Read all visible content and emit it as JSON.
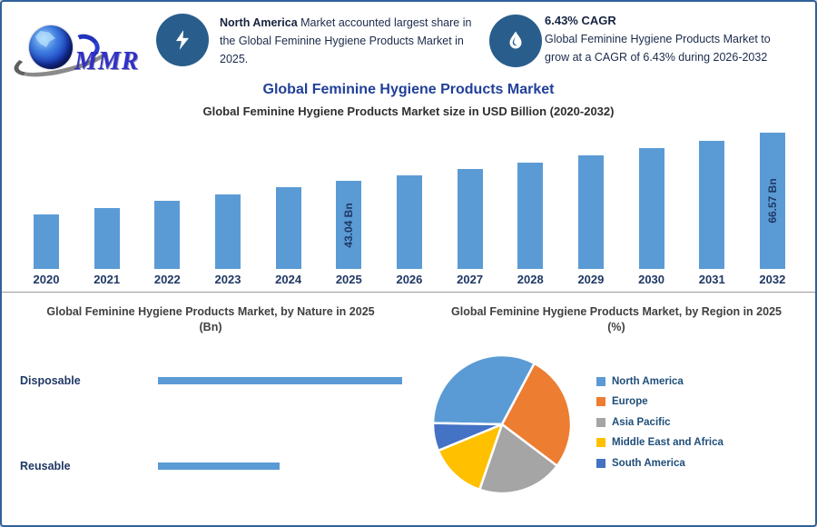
{
  "logo": {
    "text": "MMR"
  },
  "header": {
    "banner1": {
      "icon": "lightning-icon",
      "text_bold": "North America",
      "text_rest": " Market accounted largest share in the Global Feminine Hygiene Products Market in 2025."
    },
    "banner2": {
      "icon": "droplet-icon",
      "heading": "6.43% CAGR",
      "line1": "Global Feminine Hygiene Products Market to",
      "line2": "grow at a CAGR of 6.43% during 2026-2032"
    }
  },
  "title": "Global Feminine Hygiene Products Market",
  "subtitle": "Global Feminine Hygiene Products Market size in USD Billion (2020-2032)",
  "sections": {
    "nature": {
      "title_line1": "Global Feminine Hygiene Products Market, by Nature in 2025",
      "title_line2": "(Bn)"
    },
    "region": {
      "title_line1": "Global Feminine Hygiene Products Market, by Region in 2025",
      "title_line2": "(%)"
    }
  },
  "colors": {
    "bar": "#5b9bd5",
    "accent_circle": "#295e8c",
    "title_blue": "#21409a",
    "axis_text": "#1f3864",
    "legend_text": "#1f4e79"
  },
  "chart_data": [
    {
      "type": "bar",
      "title": "Global Feminine Hygiene Products Market size in USD Billion (2020-2032)",
      "categories": [
        "2020",
        "2021",
        "2022",
        "2023",
        "2024",
        "2025",
        "2026",
        "2027",
        "2028",
        "2029",
        "2030",
        "2031",
        "2032"
      ],
      "values": [
        26.5,
        29.6,
        33.2,
        36.4,
        39.9,
        43.04,
        45.8,
        48.8,
        52.0,
        55.3,
        58.9,
        62.6,
        66.57
      ],
      "data_labels": {
        "2025": "43.04 Bn",
        "2032": "66.57 Bn"
      },
      "unit": "USD Billion",
      "ylim": [
        0,
        66.57
      ],
      "grid": false,
      "bar_color": "#5b9bd5"
    },
    {
      "type": "bar",
      "orientation": "horizontal",
      "title": "Global Feminine Hygiene Products Market, by Nature in 2025 (Bn)",
      "categories": [
        "Disposable",
        "Reusable"
      ],
      "values": [
        28.7,
        14.3
      ],
      "unit": "Bn",
      "bar_color": "#5b9bd5"
    },
    {
      "type": "pie",
      "title": "Global Feminine Hygiene Products Market, by Region in 2025 (%)",
      "labels": [
        "North America",
        "Europe",
        "Asia Pacific",
        "Middle East and Africa",
        "South America"
      ],
      "values": [
        32.5,
        27.5,
        20.0,
        13.5,
        6.5
      ],
      "colors": [
        "#5b9bd5",
        "#ed7d31",
        "#a5a5a5",
        "#ffc000",
        "#4472c4"
      ],
      "start_angle_deg": 271,
      "legend_position": "right"
    }
  ]
}
